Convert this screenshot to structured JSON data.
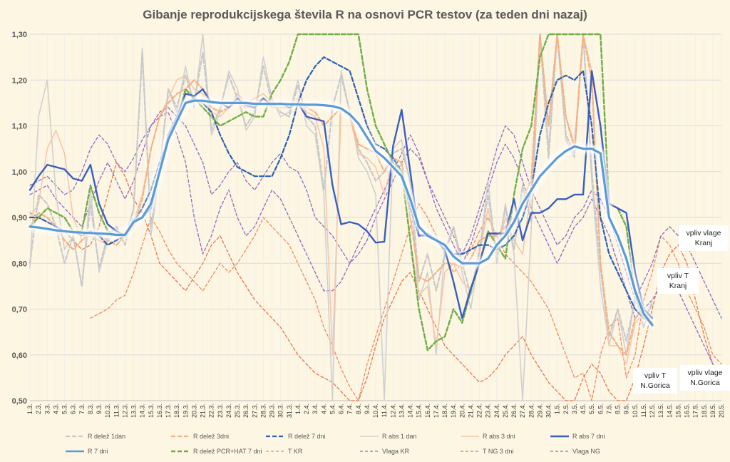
{
  "chart_data": {
    "type": "line",
    "title": "Gibanje reprodukcijskega števila R na osnovi PCR testov (za teden dni nazaj)",
    "xlabel": "",
    "ylabel": "",
    "ylim": [
      0.5,
      1.3
    ],
    "yticks": [
      "0,50",
      "0,60",
      "0,70",
      "0,80",
      "0,90",
      "1,00",
      "1,10",
      "1,20",
      "1,30"
    ],
    "grid": true,
    "legend_position": "bottom",
    "x": [
      "1.3.",
      "2.3.",
      "3.3.",
      "4.3.",
      "5.3.",
      "6.3.",
      "7.3.",
      "8.3.",
      "9.3.",
      "10.3.",
      "11.3.",
      "12.3.",
      "13.3.",
      "14.3.",
      "15.3.",
      "16.3.",
      "17.3.",
      "18.3.",
      "19.3.",
      "20.3.",
      "21.3.",
      "22.3.",
      "23.3.",
      "24.3.",
      "25.3.",
      "26.3.",
      "27.3.",
      "28.3.",
      "29.3.",
      "30.3.",
      "31.3.",
      "1.4.",
      "2.4.",
      "3.4.",
      "4.4.",
      "5.4.",
      "6.4.",
      "7.4.",
      "8.4.",
      "9.4.",
      "10.4.",
      "11.4.",
      "12.4.",
      "13.4.",
      "14.4.",
      "15.4.",
      "16.4.",
      "17.4.",
      "18.4.",
      "19.4.",
      "20.4.",
      "21.4.",
      "22.4.",
      "23.4.",
      "24.4.",
      "25.4.",
      "26.4.",
      "27.4.",
      "28.4.",
      "29.4.",
      "30.4.",
      "1.5.",
      "2.5.",
      "3.5.",
      "4.5.",
      "5.5.",
      "6.5.",
      "7.5.",
      "8.5.",
      "9.5.",
      "10.5.",
      "11.5.",
      "12.5.",
      "13.5.",
      "14.5.",
      "15.5.",
      "16.5.",
      "17.5.",
      "18.5.",
      "19.5.",
      "20.5."
    ],
    "series": [
      {
        "name": "R delež 1dan",
        "color": "#c8c8c8",
        "dash": "6,3",
        "width": 2.2,
        "values": [
          0.8,
          0.95,
          0.93,
          0.88,
          0.8,
          0.86,
          0.75,
          0.93,
          0.79,
          0.86,
          0.88,
          0.84,
          0.92,
          1.26,
          0.88,
          1.0,
          1.18,
          1.14,
          1.21,
          1.15,
          1.26,
          1.09,
          1.14,
          1.21,
          1.16,
          1.1,
          1.13,
          1.23,
          1.15,
          1.13,
          1.12,
          1.19,
          1.12,
          1.1,
          0.96,
          1.14,
          1.21,
          1.13,
          1.05,
          1.02,
          0.98,
          1.0,
          1.04,
          1.05,
          0.98,
          0.76,
          0.82,
          0.74,
          0.82,
          0.88,
          0.8,
          0.73,
          0.83,
          0.95,
          0.82,
          0.92,
          0.83,
          0.97,
          0.89,
          1.3,
          1.03,
          1.3,
          1.08,
          1.04,
          1.3,
          1.0,
          0.79,
          0.64,
          0.7,
          0.63,
          0.72,
          0.68,
          0.71,
          null,
          null,
          null,
          null,
          null,
          null,
          null,
          null
        ]
      },
      {
        "name": "R delež 3dni",
        "color": "#f4b183",
        "dash": "6,3",
        "width": 2.2,
        "values": [
          0.88,
          0.91,
          0.9,
          0.88,
          0.85,
          0.83,
          0.85,
          0.87,
          0.86,
          0.85,
          0.84,
          0.86,
          0.88,
          0.94,
          1.05,
          1.12,
          1.15,
          1.17,
          1.18,
          1.2,
          1.18,
          1.14,
          1.13,
          1.14,
          1.15,
          1.14,
          1.15,
          1.16,
          1.14,
          1.14,
          1.14,
          1.15,
          1.14,
          1.13,
          1.1,
          1.12,
          1.14,
          1.12,
          1.06,
          1.05,
          1.04,
          1.0,
          1.03,
          1.02,
          0.9,
          0.77,
          0.76,
          0.78,
          0.8,
          0.8,
          0.79,
          0.81,
          0.85,
          0.86,
          0.86,
          0.88,
          0.9,
          0.94,
          0.98,
          1.3,
          1.1,
          1.3,
          1.12,
          1.05,
          1.3,
          1.2,
          0.8,
          0.65,
          0.62,
          0.6,
          0.68,
          0.7,
          0.67,
          null,
          null,
          null,
          null,
          null,
          null,
          null,
          null
        ]
      },
      {
        "name": "R delež 7 dni",
        "color": "#2e5fb0",
        "dash": "6,3",
        "width": 2.2,
        "values": [
          0.9,
          0.9,
          0.89,
          0.88,
          0.87,
          0.87,
          0.86,
          0.87,
          0.86,
          0.84,
          0.85,
          0.86,
          0.89,
          0.92,
          0.96,
          1.02,
          1.07,
          1.11,
          1.15,
          1.16,
          1.15,
          1.13,
          1.08,
          1.04,
          1.01,
          1.0,
          0.99,
          0.99,
          0.99,
          1.03,
          1.08,
          1.15,
          1.2,
          1.23,
          1.25,
          1.24,
          1.23,
          1.22,
          1.16,
          1.1,
          1.06,
          1.05,
          1.03,
          1.0,
          0.92,
          0.86,
          0.86,
          0.85,
          0.84,
          0.82,
          0.82,
          0.83,
          0.84,
          0.84,
          0.83,
          0.84,
          0.86,
          0.9,
          0.96,
          1.08,
          1.15,
          1.2,
          1.21,
          1.2,
          1.22,
          1.1,
          0.9,
          0.82,
          0.78,
          0.74,
          0.7,
          0.68,
          0.67,
          null,
          null,
          null,
          null,
          null,
          null,
          null,
          null
        ]
      },
      {
        "name": "R abs 1 dan",
        "color": "#d0d0d0",
        "dash": "",
        "width": 1.6,
        "values": [
          0.79,
          1.12,
          1.2,
          0.95,
          0.83,
          0.86,
          0.75,
          0.96,
          0.78,
          0.85,
          0.87,
          0.86,
          0.92,
          1.27,
          0.86,
          1.0,
          1.18,
          1.13,
          1.23,
          1.14,
          1.3,
          1.08,
          1.13,
          1.22,
          1.18,
          1.09,
          1.12,
          1.25,
          1.16,
          1.12,
          1.13,
          1.2,
          1.1,
          1.08,
          0.95,
          0.5,
          1.22,
          1.13,
          1.03,
          1.0,
          0.95,
          0.5,
          1.05,
          1.07,
          0.97,
          0.72,
          0.78,
          0.6,
          0.83,
          0.88,
          0.78,
          0.7,
          0.82,
          0.98,
          0.8,
          0.93,
          0.82,
          0.5,
          0.88,
          1.3,
          1.05,
          1.3,
          1.07,
          1.03,
          1.3,
          0.98,
          0.75,
          0.62,
          0.7,
          0.6,
          0.73,
          0.66,
          0.72,
          null,
          null,
          null,
          null,
          null,
          null,
          null,
          null
        ]
      },
      {
        "name": "R abs 3 dni",
        "color": "#f8c6a8",
        "dash": "",
        "width": 1.6,
        "values": [
          0.9,
          0.93,
          1.05,
          1.09,
          1.04,
          0.9,
          0.85,
          0.86,
          0.85,
          0.84,
          0.85,
          0.87,
          0.89,
          0.95,
          1.05,
          1.12,
          1.16,
          1.2,
          1.21,
          1.18,
          1.17,
          1.13,
          1.12,
          1.14,
          1.17,
          1.15,
          1.16,
          1.17,
          1.15,
          1.14,
          1.14,
          1.16,
          1.13,
          1.12,
          1.05,
          0.6,
          1.14,
          1.12,
          1.04,
          1.03,
          1.01,
          0.95,
          1.03,
          1.02,
          0.85,
          0.73,
          0.75,
          0.62,
          0.78,
          0.8,
          0.76,
          0.74,
          0.82,
          0.92,
          0.82,
          0.9,
          0.85,
          0.82,
          0.96,
          1.3,
          1.1,
          1.3,
          1.12,
          1.06,
          1.3,
          1.22,
          0.8,
          0.62,
          0.62,
          0.58,
          0.67,
          0.69,
          0.67,
          null,
          null,
          null,
          null,
          null,
          null,
          null,
          null
        ]
      },
      {
        "name": "R abs 7 dni",
        "color": "#3a5fbe",
        "dash": "",
        "width": 2.4,
        "values": [
          0.96,
          0.99,
          1.015,
          1.01,
          1.005,
          0.985,
          0.98,
          1.015,
          0.93,
          0.885,
          0.87,
          0.86,
          0.895,
          0.9,
          0.92,
          1.0,
          1.08,
          1.12,
          1.17,
          1.165,
          1.18,
          1.15,
          1.15,
          1.14,
          1.16,
          1.145,
          1.14,
          1.16,
          1.145,
          1.15,
          1.14,
          1.15,
          1.12,
          1.115,
          1.11,
          0.97,
          0.885,
          0.89,
          0.885,
          0.87,
          0.845,
          0.847,
          1.055,
          1.135,
          1.0,
          0.86,
          0.865,
          0.85,
          0.83,
          0.76,
          0.68,
          0.745,
          0.8,
          0.865,
          0.865,
          0.865,
          0.94,
          0.85,
          0.91,
          0.91,
          0.92,
          0.94,
          0.94,
          0.95,
          0.95,
          1.22,
          1.1,
          0.93,
          0.92,
          0.91,
          0.78,
          0.7,
          0.68,
          null,
          null,
          null,
          null,
          null,
          null,
          null,
          null
        ]
      },
      {
        "name": "R 7 dni",
        "color": "#5b9bd5",
        "dash": "",
        "width": 3.2,
        "glow": true,
        "values": [
          0.88,
          0.878,
          0.875,
          0.872,
          0.87,
          0.868,
          0.867,
          0.866,
          0.865,
          0.864,
          0.862,
          0.862,
          0.89,
          0.9,
          0.93,
          1.0,
          1.07,
          1.11,
          1.15,
          1.155,
          1.155,
          1.152,
          1.15,
          1.15,
          1.15,
          1.15,
          1.148,
          1.148,
          1.148,
          1.148,
          1.147,
          1.147,
          1.146,
          1.146,
          1.145,
          1.143,
          1.138,
          1.125,
          1.105,
          1.075,
          1.045,
          1.03,
          1.01,
          0.99,
          0.94,
          0.88,
          0.86,
          0.85,
          0.84,
          0.815,
          0.8,
          0.8,
          0.8,
          0.81,
          0.84,
          0.86,
          0.89,
          0.93,
          0.96,
          0.99,
          1.01,
          1.03,
          1.045,
          1.055,
          1.05,
          1.05,
          1.04,
          0.9,
          0.86,
          0.81,
          0.74,
          0.69,
          0.665,
          null,
          null,
          null,
          null,
          null,
          null,
          null,
          null
        ]
      },
      {
        "name": "R delež PCR+HAT 7 dni",
        "color": "#70ad47",
        "dash": "6,3",
        "width": 2.4,
        "values": [
          0.88,
          0.9,
          0.92,
          0.91,
          0.9,
          0.87,
          0.87,
          0.97,
          0.91,
          0.87,
          0.86,
          0.86,
          0.89,
          0.9,
          0.93,
          1.0,
          1.07,
          1.11,
          1.18,
          1.16,
          1.14,
          1.12,
          1.1,
          1.11,
          1.12,
          1.13,
          1.12,
          1.12,
          1.17,
          1.2,
          1.24,
          1.3,
          1.3,
          1.3,
          1.3,
          1.3,
          1.3,
          1.3,
          1.3,
          1.18,
          1.1,
          1.06,
          1.02,
          1.0,
          0.85,
          0.7,
          0.61,
          0.63,
          0.64,
          0.7,
          0.67,
          0.74,
          0.8,
          0.87,
          0.84,
          0.81,
          0.95,
          1.05,
          1.1,
          1.25,
          1.3,
          1.3,
          1.3,
          1.3,
          1.3,
          1.3,
          1.3,
          0.93,
          0.92,
          0.88,
          0.73,
          0.68,
          0.67,
          null,
          null,
          null,
          null,
          null,
          null,
          null,
          null
        ]
      },
      {
        "name": "T KR",
        "color": "#f08a62",
        "dash": "4,3",
        "width": 1.3,
        "values": [
          null,
          null,
          null,
          null,
          null,
          null,
          null,
          0.68,
          0.69,
          0.7,
          0.72,
          0.73,
          0.78,
          0.84,
          0.9,
          0.87,
          0.83,
          0.8,
          0.78,
          0.76,
          0.74,
          0.77,
          0.8,
          0.78,
          0.8,
          0.83,
          0.86,
          0.9,
          0.88,
          0.86,
          0.84,
          0.8,
          0.76,
          0.72,
          0.66,
          0.62,
          0.57,
          0.53,
          0.5,
          0.58,
          0.64,
          0.7,
          0.76,
          0.82,
          0.88,
          0.93,
          0.9,
          0.86,
          0.82,
          0.78,
          0.8,
          0.83,
          0.87,
          0.9,
          0.86,
          0.82,
          0.8,
          0.78,
          0.76,
          0.73,
          0.7,
          0.65,
          0.6,
          0.55,
          0.56,
          0.5,
          0.6,
          0.66,
          0.68,
          0.55,
          0.6,
          0.72,
          0.78,
          0.86,
          0.84,
          0.8,
          0.74,
          0.7,
          0.66,
          0.6,
          0.58
        ]
      },
      {
        "name": "Vlaga KR",
        "color": "#8e6bbf",
        "dash": "4,3",
        "width": 1.3,
        "values": [
          0.97,
          0.98,
          0.99,
          0.97,
          0.95,
          0.96,
          1.0,
          1.05,
          1.08,
          1.06,
          1.02,
          1.0,
          1.03,
          1.07,
          1.1,
          1.13,
          1.14,
          1.12,
          1.1,
          1.06,
          1.02,
          0.95,
          0.97,
          1.0,
          1.02,
          0.98,
          0.96,
          0.99,
          1.02,
          1.04,
          1.01,
          1.0,
          0.96,
          0.9,
          0.88,
          0.86,
          0.83,
          0.8,
          0.82,
          0.85,
          0.9,
          0.94,
          0.98,
          1.02,
          1.05,
          1.03,
          0.98,
          0.94,
          0.9,
          0.86,
          0.82,
          0.86,
          0.92,
          0.98,
          1.05,
          1.1,
          1.08,
          1.02,
          0.96,
          0.92,
          0.88,
          0.84,
          0.86,
          0.9,
          0.92,
          0.96,
          0.94,
          0.9,
          0.84,
          0.78,
          0.72,
          0.76,
          0.8,
          0.86,
          0.88,
          0.86,
          0.84,
          0.8,
          0.76,
          0.72,
          0.68
        ]
      },
      {
        "name": "T NG 3 dni",
        "color": "#e8744d",
        "dash": "4,3",
        "width": 1.3,
        "values": [
          0.91,
          0.9,
          0.89,
          0.88,
          0.87,
          0.85,
          0.83,
          0.84,
          0.88,
          0.95,
          1.02,
          0.99,
          0.94,
          0.91,
          0.86,
          0.8,
          0.78,
          0.76,
          0.74,
          0.77,
          0.8,
          0.84,
          0.86,
          0.82,
          0.78,
          0.75,
          0.72,
          0.7,
          0.68,
          0.66,
          0.63,
          0.6,
          0.58,
          0.56,
          0.55,
          0.54,
          0.52,
          0.5,
          0.5,
          0.55,
          0.62,
          0.68,
          0.72,
          0.76,
          0.78,
          0.74,
          0.7,
          0.66,
          0.62,
          0.6,
          0.58,
          0.56,
          0.54,
          0.55,
          0.57,
          0.6,
          0.62,
          0.64,
          0.6,
          0.57,
          0.54,
          0.52,
          0.5,
          0.5,
          0.55,
          0.58,
          0.56,
          0.52,
          0.5,
          0.5,
          0.55,
          0.62,
          0.7,
          0.78,
          0.82,
          0.84,
          0.8,
          0.72,
          0.64,
          0.58,
          0.55
        ]
      },
      {
        "name": "Vlaga NG",
        "color": "#9467bd",
        "dash": "4,3",
        "width": 1.3,
        "values": [
          0.95,
          0.96,
          0.97,
          0.94,
          0.92,
          0.9,
          0.88,
          0.93,
          0.98,
          1.02,
          0.98,
          0.94,
          0.98,
          1.04,
          1.1,
          1.12,
          1.13,
          1.08,
          1.02,
          0.9,
          0.82,
          0.86,
          0.92,
          0.96,
          0.9,
          0.86,
          0.88,
          0.92,
          0.96,
          0.94,
          0.9,
          0.86,
          0.82,
          0.78,
          0.74,
          0.74,
          0.76,
          0.8,
          0.84,
          0.88,
          0.92,
          0.96,
          1.0,
          1.04,
          1.08,
          1.04,
          0.98,
          0.92,
          0.88,
          0.84,
          0.8,
          0.84,
          0.9,
          0.96,
          1.02,
          1.06,
          1.03,
          0.98,
          0.92,
          0.88,
          0.84,
          0.8,
          0.84,
          0.88,
          0.9,
          0.94,
          0.9,
          0.86,
          0.8,
          0.74,
          0.68,
          0.7,
          0.72,
          0.75,
          0.78,
          0.74,
          0.7,
          0.66,
          0.62,
          0.58,
          0.55
        ]
      }
    ],
    "annotations": [
      {
        "key": "vlaga_kr",
        "lines": [
          "vpliv vlage",
          "Kranj"
        ]
      },
      {
        "key": "t_kr",
        "lines": [
          "vpliv T",
          "Kranj"
        ]
      },
      {
        "key": "t_ng",
        "lines": [
          "vpliv T",
          "N.Gorica"
        ]
      },
      {
        "key": "vlaga_ng",
        "lines": [
          "vpliv vlage",
          "N.Gorica"
        ]
      }
    ]
  }
}
